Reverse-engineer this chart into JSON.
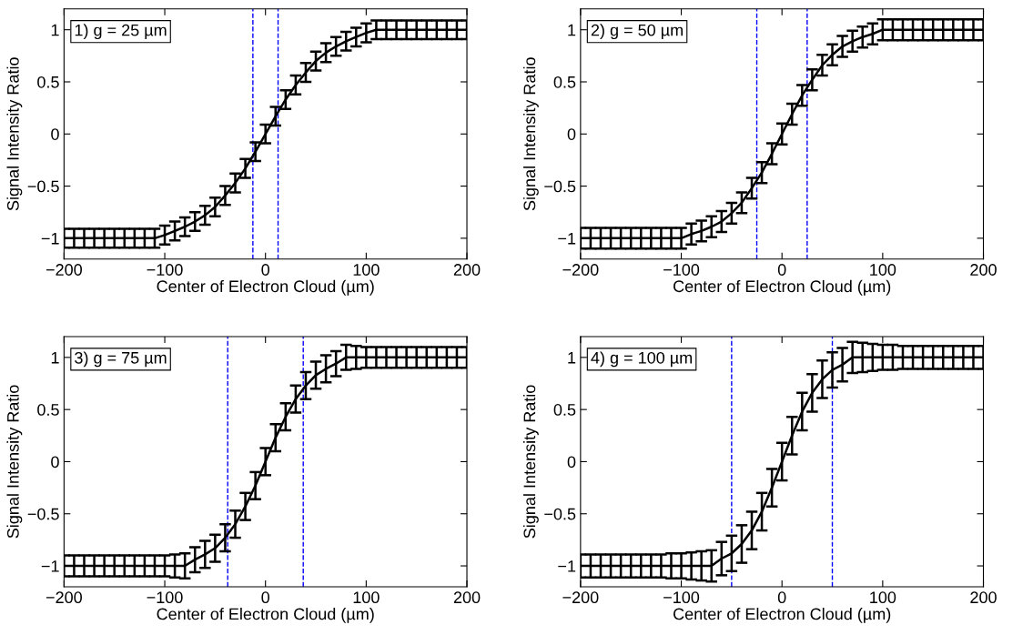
{
  "chart_data": [
    {
      "type": "line",
      "xlabel": "Center of Electron Cloud (µm)",
      "ylabel": "Signal Intensity Ratio",
      "annotations": [
        "1) g = 25 µm"
      ],
      "x": [
        -200,
        -190,
        -180,
        -170,
        -160,
        -150,
        -140,
        -130,
        -120,
        -110,
        -100,
        -90,
        -80,
        -70,
        -60,
        -50,
        -40,
        -30,
        -20,
        -10,
        0,
        10,
        20,
        30,
        40,
        50,
        60,
        70,
        80,
        90,
        100,
        110,
        120,
        130,
        140,
        150,
        160,
        170,
        180,
        190,
        200
      ],
      "series": [
        {
          "color": "#000000",
          "values": [
            -1,
            -1,
            -1,
            -1,
            -1,
            -1,
            -1,
            -1,
            -1,
            -1,
            -0.97,
            -0.93,
            -0.89,
            -0.84,
            -0.78,
            -0.7,
            -0.59,
            -0.47,
            -0.33,
            -0.17,
            0,
            0.17,
            0.33,
            0.47,
            0.59,
            0.7,
            0.78,
            0.84,
            0.89,
            0.93,
            0.97,
            1,
            1,
            1,
            1,
            1,
            1,
            1,
            1,
            1,
            1
          ],
          "errors": [
            0.09,
            0.09,
            0.09,
            0.09,
            0.09,
            0.09,
            0.09,
            0.09,
            0.09,
            0.09,
            0.09,
            0.09,
            0.09,
            0.09,
            0.09,
            0.09,
            0.09,
            0.09,
            0.09,
            0.09,
            0.09,
            0.09,
            0.09,
            0.09,
            0.09,
            0.09,
            0.09,
            0.09,
            0.09,
            0.09,
            0.09,
            0.09,
            0.09,
            0.09,
            0.09,
            0.09,
            0.09,
            0.09,
            0.09,
            0.09,
            0.09
          ]
        }
      ],
      "ref_lines": [
        {
          "axis": "x",
          "value": -12.5,
          "color": "#0000ff",
          "line_style": "dashed"
        },
        {
          "axis": "x",
          "value": 12.5,
          "color": "#0000ff",
          "line_style": "dashed"
        }
      ],
      "xlim": [
        -200,
        200
      ],
      "ylim": [
        -1.2,
        1.2
      ],
      "xticks": [
        -200,
        -100,
        0,
        100,
        200
      ],
      "yticks": [
        -1,
        -0.5,
        0,
        0.5,
        1
      ],
      "grid": false,
      "marker": "none",
      "line_style": "solid"
    },
    {
      "type": "line",
      "xlabel": "Center of Electron Cloud (µm)",
      "ylabel": "Signal Intensity Ratio",
      "annotations": [
        "2) g = 50 µm"
      ],
      "x": [
        -200,
        -190,
        -180,
        -170,
        -160,
        -150,
        -140,
        -130,
        -120,
        -110,
        -100,
        -90,
        -80,
        -70,
        -60,
        -50,
        -40,
        -30,
        -20,
        -10,
        0,
        10,
        20,
        30,
        40,
        50,
        60,
        70,
        80,
        90,
        100,
        110,
        120,
        130,
        140,
        150,
        160,
        170,
        180,
        190,
        200
      ],
      "series": [
        {
          "color": "#000000",
          "values": [
            -1,
            -1,
            -1,
            -1,
            -1,
            -1,
            -1,
            -1,
            -1,
            -1,
            -1,
            -0.96,
            -0.93,
            -0.89,
            -0.84,
            -0.76,
            -0.66,
            -0.52,
            -0.37,
            -0.19,
            0,
            0.19,
            0.37,
            0.52,
            0.66,
            0.76,
            0.84,
            0.89,
            0.93,
            0.96,
            1,
            1,
            1,
            1,
            1,
            1,
            1,
            1,
            1,
            1,
            1
          ],
          "errors": [
            0.1,
            0.1,
            0.1,
            0.1,
            0.1,
            0.1,
            0.1,
            0.1,
            0.1,
            0.1,
            0.1,
            0.1,
            0.1,
            0.1,
            0.1,
            0.1,
            0.1,
            0.1,
            0.1,
            0.1,
            0.1,
            0.1,
            0.1,
            0.1,
            0.1,
            0.1,
            0.1,
            0.1,
            0.1,
            0.1,
            0.1,
            0.1,
            0.1,
            0.1,
            0.1,
            0.1,
            0.1,
            0.1,
            0.1,
            0.1,
            0.1
          ]
        }
      ],
      "ref_lines": [
        {
          "axis": "x",
          "value": -25,
          "color": "#0000ff",
          "line_style": "dashed"
        },
        {
          "axis": "x",
          "value": 25,
          "color": "#0000ff",
          "line_style": "dashed"
        }
      ],
      "xlim": [
        -200,
        200
      ],
      "ylim": [
        -1.2,
        1.2
      ],
      "xticks": [
        -200,
        -100,
        0,
        100,
        200
      ],
      "yticks": [
        -1,
        -0.5,
        0,
        0.5,
        1
      ],
      "grid": false,
      "marker": "none",
      "line_style": "solid"
    },
    {
      "type": "line",
      "xlabel": "Center of Electron Cloud (µm)",
      "ylabel": "Signal Intensity Ratio",
      "annotations": [
        "3) g = 75 µm"
      ],
      "x": [
        -200,
        -190,
        -180,
        -170,
        -160,
        -150,
        -140,
        -130,
        -120,
        -110,
        -100,
        -90,
        -80,
        -70,
        -60,
        -50,
        -40,
        -30,
        -20,
        -10,
        0,
        10,
        20,
        30,
        40,
        50,
        60,
        70,
        80,
        90,
        100,
        110,
        120,
        130,
        140,
        150,
        160,
        170,
        180,
        190,
        200
      ],
      "series": [
        {
          "color": "#000000",
          "values": [
            -1,
            -1,
            -1,
            -1,
            -1,
            -1,
            -1,
            -1,
            -1,
            -1,
            -1,
            -1,
            -1,
            -0.94,
            -0.89,
            -0.83,
            -0.73,
            -0.6,
            -0.43,
            -0.23,
            0,
            0.23,
            0.43,
            0.6,
            0.73,
            0.83,
            0.89,
            0.94,
            1,
            1,
            1,
            1,
            1,
            1,
            1,
            1,
            1,
            1,
            1,
            1,
            1
          ],
          "errors": [
            0.1,
            0.1,
            0.1,
            0.1,
            0.1,
            0.1,
            0.1,
            0.1,
            0.1,
            0.1,
            0.1,
            0.11,
            0.12,
            0.12,
            0.13,
            0.13,
            0.13,
            0.13,
            0.13,
            0.13,
            0.13,
            0.13,
            0.13,
            0.13,
            0.13,
            0.13,
            0.13,
            0.12,
            0.12,
            0.11,
            0.1,
            0.1,
            0.1,
            0.1,
            0.1,
            0.1,
            0.1,
            0.1,
            0.1,
            0.1,
            0.1
          ]
        }
      ],
      "ref_lines": [
        {
          "axis": "x",
          "value": -37.5,
          "color": "#0000ff",
          "line_style": "dashed"
        },
        {
          "axis": "x",
          "value": 37.5,
          "color": "#0000ff",
          "line_style": "dashed"
        }
      ],
      "xlim": [
        -200,
        200
      ],
      "ylim": [
        -1.2,
        1.2
      ],
      "xticks": [
        -200,
        -100,
        0,
        100,
        200
      ],
      "yticks": [
        -1,
        -0.5,
        0,
        0.5,
        1
      ],
      "grid": false,
      "marker": "none",
      "line_style": "solid"
    },
    {
      "type": "line",
      "xlabel": "Center of Electron Cloud (µm)",
      "ylabel": "Signal Intensity Ratio",
      "annotations": [
        "4) g = 100 µm"
      ],
      "x": [
        -200,
        -190,
        -180,
        -170,
        -160,
        -150,
        -140,
        -130,
        -120,
        -110,
        -100,
        -90,
        -80,
        -70,
        -60,
        -50,
        -40,
        -30,
        -20,
        -10,
        0,
        10,
        20,
        30,
        40,
        50,
        60,
        70,
        80,
        90,
        100,
        110,
        120,
        130,
        140,
        150,
        160,
        170,
        180,
        190,
        200
      ],
      "series": [
        {
          "color": "#000000",
          "values": [
            -1,
            -1,
            -1,
            -1,
            -1,
            -1,
            -1,
            -1,
            -1,
            -1,
            -1,
            -1,
            -1,
            -1,
            -0.93,
            -0.88,
            -0.79,
            -0.66,
            -0.48,
            -0.25,
            0,
            0.25,
            0.48,
            0.66,
            0.79,
            0.88,
            0.93,
            1,
            1,
            1,
            1,
            1,
            1,
            1,
            1,
            1,
            1,
            1,
            1,
            1,
            1
          ],
          "errors": [
            0.11,
            0.11,
            0.11,
            0.11,
            0.11,
            0.11,
            0.11,
            0.11,
            0.11,
            0.12,
            0.12,
            0.13,
            0.14,
            0.15,
            0.16,
            0.17,
            0.18,
            0.18,
            0.18,
            0.18,
            0.18,
            0.18,
            0.18,
            0.18,
            0.18,
            0.17,
            0.16,
            0.15,
            0.14,
            0.13,
            0.12,
            0.12,
            0.11,
            0.11,
            0.11,
            0.11,
            0.11,
            0.11,
            0.11,
            0.11,
            0.11
          ]
        }
      ],
      "ref_lines": [
        {
          "axis": "x",
          "value": -50,
          "color": "#0000ff",
          "line_style": "dashed"
        },
        {
          "axis": "x",
          "value": 50,
          "color": "#0000ff",
          "line_style": "dashed"
        }
      ],
      "xlim": [
        -200,
        200
      ],
      "ylim": [
        -1.2,
        1.2
      ],
      "xticks": [
        -200,
        -100,
        0,
        100,
        200
      ],
      "yticks": [
        -1,
        -0.5,
        0,
        0.5,
        1
      ],
      "grid": false,
      "marker": "none",
      "line_style": "solid"
    }
  ]
}
